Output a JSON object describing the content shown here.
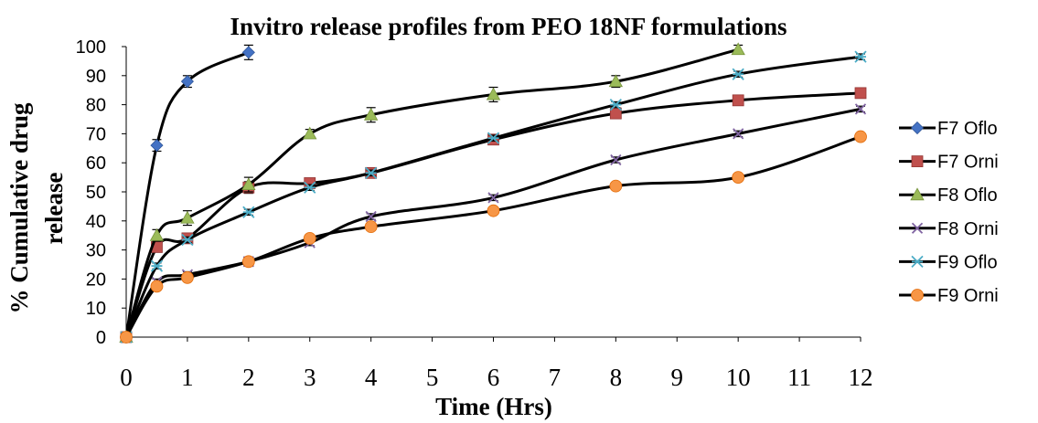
{
  "chart_data": {
    "type": "line",
    "title": "Invitro release profiles from PEO 18NF formulations",
    "xlabel": "Time (Hrs)",
    "ylabel_lines": [
      "% Cumulative drug",
      "release"
    ],
    "xlim": [
      0,
      12
    ],
    "ylim": [
      0,
      100
    ],
    "x_ticks": [
      0,
      1,
      2,
      3,
      4,
      5,
      6,
      7,
      8,
      9,
      10,
      11,
      12
    ],
    "y_ticks": [
      0,
      10,
      20,
      30,
      40,
      50,
      60,
      70,
      80,
      90,
      100
    ],
    "grid": false,
    "legend_position": "right",
    "error_bars": true,
    "series": [
      {
        "name": "F7 Oflo",
        "marker": "diamond",
        "color": "#4472C4",
        "x": [
          0,
          0.5,
          1,
          2
        ],
        "y": [
          0,
          66,
          88,
          98
        ],
        "err": [
          0,
          2,
          2,
          2.5
        ]
      },
      {
        "name": "F7 Orni",
        "marker": "square",
        "color": "#C0504D",
        "x": [
          0,
          0.5,
          1,
          2,
          3,
          4,
          6,
          8,
          10,
          12
        ],
        "y": [
          0,
          31,
          34,
          51.5,
          53,
          56.5,
          68,
          77,
          81.5,
          84
        ],
        "err": [
          0,
          1.5,
          1.5,
          2,
          1.5,
          1.5,
          1.5,
          1.5,
          1.5,
          1.5
        ]
      },
      {
        "name": "F8 Oflo",
        "marker": "triangle",
        "color": "#9BBB59",
        "x": [
          0,
          0.5,
          1,
          2,
          3,
          4,
          6,
          8,
          10
        ],
        "y": [
          0,
          35,
          41,
          52.5,
          70,
          76.5,
          83.5,
          88,
          99
        ],
        "err": [
          0,
          2,
          2.5,
          2.5,
          1.5,
          2.5,
          2.5,
          2,
          1.5
        ]
      },
      {
        "name": "F8 Orni",
        "marker": "x",
        "color": "#8064A2",
        "x": [
          0,
          0.5,
          1,
          2,
          3,
          4,
          6,
          8,
          10,
          12
        ],
        "y": [
          0,
          19,
          21.5,
          26,
          32.5,
          41.5,
          48,
          61,
          70,
          78.5
        ],
        "err": [
          0,
          1,
          1,
          1,
          1,
          1,
          1,
          1,
          1,
          1
        ]
      },
      {
        "name": "F9 Oflo",
        "marker": "star",
        "color": "#4BACC6",
        "x": [
          0,
          0.5,
          1,
          2,
          3,
          4,
          6,
          8,
          10,
          12
        ],
        "y": [
          0,
          24.5,
          33.5,
          43,
          51.5,
          56.5,
          68.5,
          80,
          90.5,
          96.5
        ],
        "err": [
          0,
          1,
          1,
          1,
          1,
          1,
          1,
          1,
          1,
          1
        ]
      },
      {
        "name": "F9 Orni",
        "marker": "circle",
        "color": "#F79646",
        "x": [
          0,
          0.5,
          1,
          2,
          3,
          4,
          6,
          8,
          10,
          12
        ],
        "y": [
          0,
          17.5,
          20.5,
          26,
          34,
          38,
          43.5,
          52,
          55,
          69
        ],
        "err": [
          0,
          1,
          1,
          1,
          1,
          1,
          1,
          1,
          1,
          1
        ]
      }
    ]
  }
}
